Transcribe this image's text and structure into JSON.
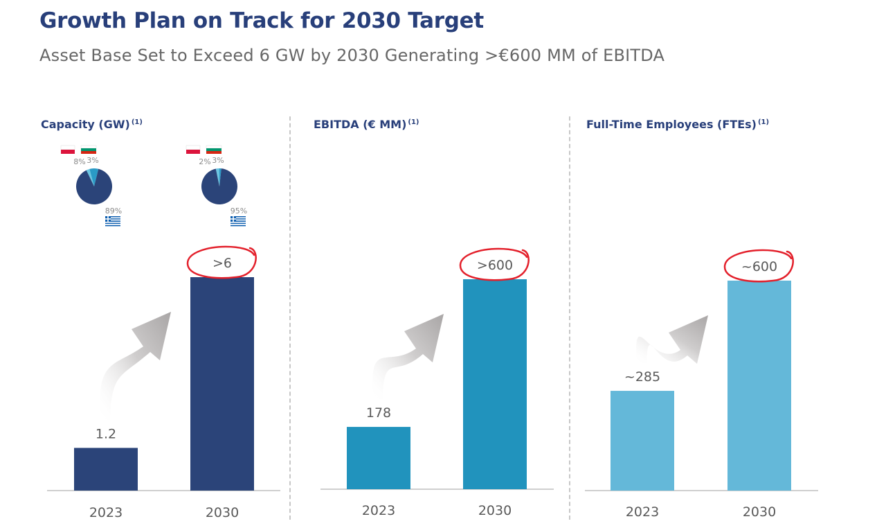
{
  "header": {
    "title": "Growth Plan on Track for 2030 Target",
    "subtitle": "Asset Base Set to Exceed 6 GW by 2030 Generating >€600 MM of EBITDA"
  },
  "chart_data": [
    {
      "type": "bar",
      "title": "Capacity (GW)",
      "title_note": "(1)",
      "categories": [
        "2023",
        "2030"
      ],
      "values": [
        1.2,
        6
      ],
      "data_labels": [
        "1.2",
        ">6"
      ],
      "highlighted": [
        false,
        true
      ],
      "color": "#2b4479",
      "ylim": [
        0,
        6
      ],
      "pies": [
        {
          "year": "2023",
          "slices": [
            {
              "label": "89%",
              "value": 89,
              "country": "greece-flag-icon",
              "color": "#2b4479"
            },
            {
              "label": "8%",
              "value": 8,
              "country": "poland-flag-icon",
              "color": "#2a9ac6"
            },
            {
              "label": "3%",
              "value": 3,
              "country": "bulgaria-flag-icon",
              "color": "#6cc6e2"
            }
          ]
        },
        {
          "year": "2030",
          "slices": [
            {
              "label": "95%",
              "value": 95,
              "country": "greece-flag-icon",
              "color": "#2b4479"
            },
            {
              "label": "2%",
              "value": 2,
              "country": "poland-flag-icon",
              "color": "#2a9ac6"
            },
            {
              "label": "3%",
              "value": 3,
              "country": "bulgaria-flag-icon",
              "color": "#6cc6e2"
            }
          ]
        }
      ]
    },
    {
      "type": "bar",
      "title": "EBITDA (€ MM)",
      "title_note": "(1)",
      "categories": [
        "2023",
        "2030"
      ],
      "values": [
        178,
        600
      ],
      "data_labels": [
        "178",
        ">600"
      ],
      "highlighted": [
        false,
        true
      ],
      "color": "#2193bd",
      "ylim": [
        0,
        600
      ]
    },
    {
      "type": "bar",
      "title": "Full-Time Employees (FTEs)",
      "title_note": "(1)",
      "categories": [
        "2023",
        "2030"
      ],
      "values": [
        285,
        600
      ],
      "data_labels": [
        "~285",
        "~600"
      ],
      "highlighted": [
        false,
        true
      ],
      "color": "#64b8d9",
      "ylim": [
        0,
        600
      ]
    }
  ],
  "colors": {
    "title": "#283f7a",
    "subtitle": "#666666",
    "highlight_circle": "#e3202b",
    "arrow": "#a9a6a6",
    "axis": "#bfbfbf",
    "label": "#595959"
  }
}
